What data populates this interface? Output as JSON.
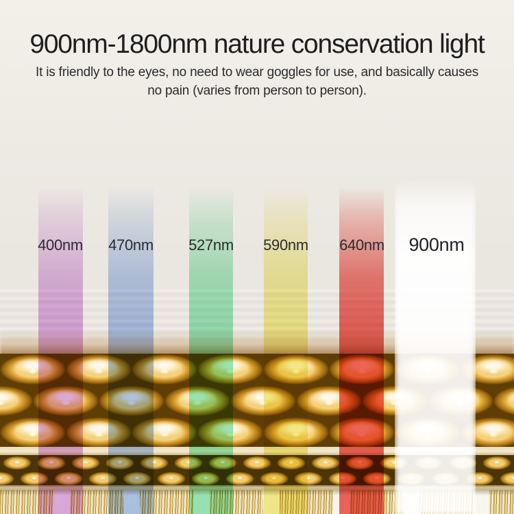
{
  "header": {
    "title": "900nm-1800nm nature conservation light",
    "subtitle_line1": "It is friendly to the eyes, no need to wear goggles for use, and basically causes",
    "subtitle_line2": "no pain (varies from person to person)."
  },
  "beams": [
    {
      "label": "400nm",
      "color": "#dcaae6"
    },
    {
      "label": "470nm",
      "color": "#abc3ee"
    },
    {
      "label": "527nm",
      "color": "#97e8ba"
    },
    {
      "label": "590nm",
      "color": "#f3ee8c"
    },
    {
      "label": "640nm",
      "color": "#ed5f57"
    },
    {
      "label": "900nm",
      "color": "#ffffff"
    }
  ],
  "colors": {
    "background": "#edeae4",
    "title_text": "#1e1e20",
    "label_text": "#2b2b31",
    "device_gold": "#d99d2e"
  }
}
